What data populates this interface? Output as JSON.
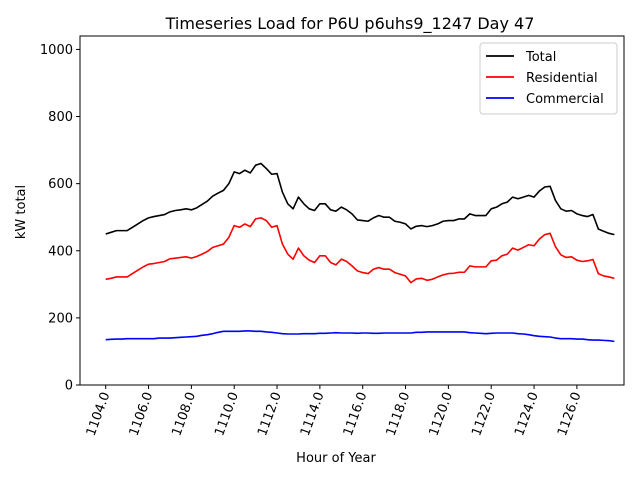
{
  "chart_data": {
    "type": "line",
    "title": "Timeseries Load for P6U p6uhs9_1247  Day 47",
    "xlabel": "Hour of Year",
    "ylabel": "kW total",
    "xlim": [
      1102.8,
      1128.2
    ],
    "ylim": [
      0,
      1040
    ],
    "x_ticks": [
      1104,
      1106,
      1108,
      1110,
      1112,
      1114,
      1116,
      1118,
      1120,
      1122,
      1124,
      1126
    ],
    "x_tick_labels": [
      "1104.0",
      "1106.0",
      "1108.0",
      "1110.0",
      "1112.0",
      "1114.0",
      "1116.0",
      "1118.0",
      "1120.0",
      "1122.0",
      "1124.0",
      "1126.0"
    ],
    "y_ticks": [
      0,
      200,
      400,
      600,
      800,
      1000
    ],
    "y_tick_labels": [
      "0",
      "200",
      "400",
      "600",
      "800",
      "1000"
    ],
    "legend_position": "top-right",
    "x": [
      1104.0,
      1104.25,
      1104.5,
      1104.75,
      1105.0,
      1105.25,
      1105.5,
      1105.75,
      1106.0,
      1106.25,
      1106.5,
      1106.75,
      1107.0,
      1107.25,
      1107.5,
      1107.75,
      1108.0,
      1108.25,
      1108.5,
      1108.75,
      1109.0,
      1109.25,
      1109.5,
      1109.75,
      1110.0,
      1110.25,
      1110.5,
      1110.75,
      1111.0,
      1111.25,
      1111.5,
      1111.75,
      1112.0,
      1112.25,
      1112.5,
      1112.75,
      1113.0,
      1113.25,
      1113.5,
      1113.75,
      1114.0,
      1114.25,
      1114.5,
      1114.75,
      1115.0,
      1115.25,
      1115.5,
      1115.75,
      1116.0,
      1116.25,
      1116.5,
      1116.75,
      1117.0,
      1117.25,
      1117.5,
      1117.75,
      1118.0,
      1118.25,
      1118.5,
      1118.75,
      1119.0,
      1119.25,
      1119.5,
      1119.75,
      1120.0,
      1120.25,
      1120.5,
      1120.75,
      1121.0,
      1121.25,
      1121.5,
      1121.75,
      1122.0,
      1122.25,
      1122.5,
      1122.75,
      1123.0,
      1123.25,
      1123.5,
      1123.75,
      1124.0,
      1124.25,
      1124.5,
      1124.75,
      1125.0,
      1125.25,
      1125.5,
      1125.75,
      1126.0,
      1126.25,
      1126.5,
      1126.75,
      1127.0,
      1127.25,
      1127.5,
      1127.75
    ],
    "series": [
      {
        "name": "Total",
        "color": "#000000",
        "values": [
          450,
          455,
          460,
          460,
          460,
          470,
          480,
          490,
          498,
          502,
          505,
          508,
          516,
          520,
          522,
          525,
          522,
          528,
          538,
          548,
          563,
          572,
          580,
          600,
          635,
          630,
          640,
          632,
          655,
          660,
          645,
          628,
          630,
          575,
          540,
          525,
          560,
          540,
          525,
          520,
          540,
          540,
          522,
          518,
          530,
          522,
          510,
          492,
          490,
          488,
          498,
          505,
          500,
          500,
          488,
          485,
          480,
          465,
          473,
          475,
          472,
          475,
          480,
          488,
          490,
          490,
          495,
          495,
          510,
          505,
          505,
          505,
          525,
          530,
          540,
          545,
          560,
          555,
          560,
          565,
          560,
          578,
          590,
          592,
          550,
          525,
          518,
          520,
          510,
          505,
          502,
          508,
          465,
          458,
          452,
          448
        ]
      },
      {
        "name": "Residential",
        "color": "#ff0000",
        "values": [
          315,
          318,
          322,
          322,
          322,
          332,
          342,
          352,
          360,
          362,
          365,
          368,
          376,
          378,
          380,
          382,
          378,
          383,
          390,
          398,
          410,
          415,
          420,
          440,
          475,
          470,
          480,
          472,
          495,
          498,
          490,
          470,
          475,
          420,
          390,
          375,
          408,
          385,
          372,
          365,
          385,
          385,
          365,
          358,
          375,
          368,
          355,
          340,
          335,
          332,
          345,
          350,
          345,
          345,
          335,
          330,
          325,
          305,
          316,
          318,
          312,
          315,
          322,
          328,
          332,
          333,
          336,
          336,
          355,
          352,
          352,
          352,
          370,
          372,
          385,
          390,
          408,
          402,
          410,
          418,
          415,
          435,
          448,
          452,
          412,
          388,
          380,
          382,
          372,
          368,
          370,
          374,
          332,
          325,
          322,
          318
        ]
      },
      {
        "name": "Commercial",
        "color": "#0000ff",
        "values": [
          135,
          136,
          137,
          137,
          138,
          138,
          138,
          138,
          138,
          138,
          140,
          140,
          140,
          141,
          142,
          143,
          144,
          145,
          148,
          150,
          153,
          157,
          160,
          160,
          160,
          160,
          161,
          161,
          160,
          160,
          158,
          157,
          155,
          153,
          152,
          152,
          152,
          153,
          153,
          153,
          154,
          154,
          155,
          156,
          155,
          155,
          155,
          154,
          155,
          155,
          154,
          154,
          155,
          155,
          155,
          155,
          155,
          155,
          157,
          157,
          158,
          158,
          158,
          158,
          158,
          158,
          158,
          158,
          156,
          155,
          154,
          153,
          154,
          155,
          155,
          155,
          155,
          153,
          152,
          150,
          147,
          145,
          144,
          143,
          140,
          138,
          138,
          138,
          137,
          137,
          135,
          134,
          134,
          133,
          132,
          130
        ]
      }
    ]
  }
}
